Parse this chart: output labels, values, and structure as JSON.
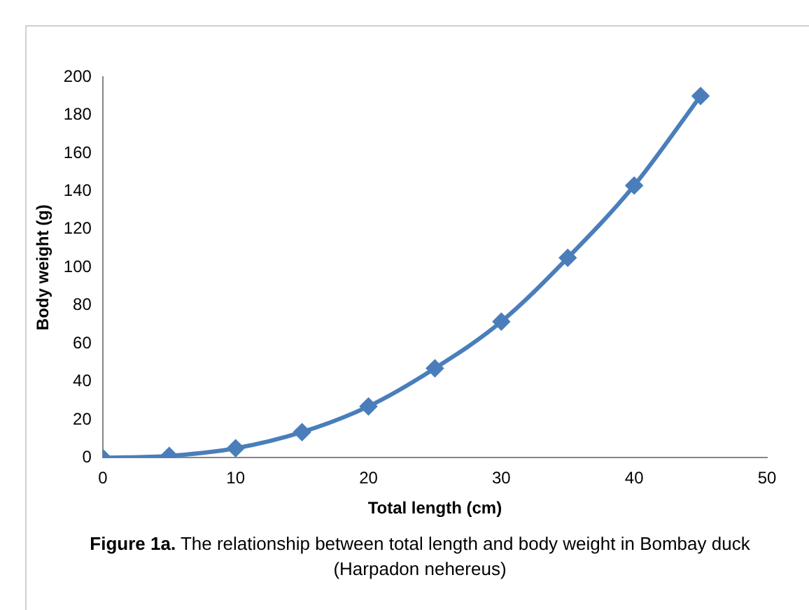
{
  "chart_data": {
    "type": "line",
    "xlabel": "Total length (cm)",
    "ylabel": "Body weight (g)",
    "x": [
      0,
      5,
      10,
      15,
      20,
      25,
      30,
      35,
      40,
      45
    ],
    "series": [
      {
        "color": "#4a7ebb",
        "values": [
          0,
          1,
          5,
          13.5,
          27,
          47,
          71.5,
          105,
          143,
          190
        ]
      }
    ],
    "xlim": [
      0,
      50
    ],
    "xticks": [
      0,
      10,
      20,
      30,
      40,
      50
    ],
    "ylim": [
      0,
      200
    ],
    "yticks": [
      0,
      20,
      40,
      60,
      80,
      100,
      120,
      140,
      160,
      180,
      200
    ],
    "grid": false,
    "legend": false,
    "marker": "diamond",
    "line_style": "solid",
    "annotations": [
      "Figure 1a.",
      "The relationship between total length and body weight in Bombay duck (Harpadon nehereus)"
    ]
  }
}
